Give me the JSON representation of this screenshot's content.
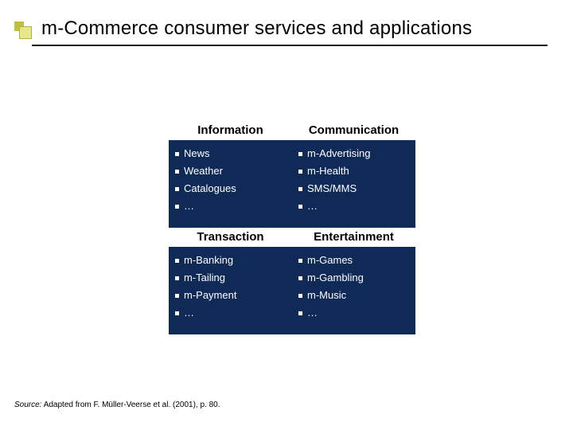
{
  "title": "m-Commerce consumer services and applications",
  "source_prefix": "Source:",
  "source_text": " Adapted from F. Müller-Veerse et al. (2001), p. 80.",
  "colors": {
    "quad_fill": "#0f2a57"
  },
  "quadrants": [
    {
      "header": "Information",
      "items": [
        "News",
        "Weather",
        "Catalogues",
        "…"
      ]
    },
    {
      "header": "Communication",
      "items": [
        "m-Advertising",
        "m-Health",
        "SMS/MMS",
        "…"
      ]
    },
    {
      "header": "Transaction",
      "items": [
        "m-Banking",
        "m-Tailing",
        "m-Payment",
        "…"
      ]
    },
    {
      "header": "Entertainment",
      "items": [
        "m-Games",
        "m-Gambling",
        "m-Music",
        "…"
      ]
    }
  ]
}
